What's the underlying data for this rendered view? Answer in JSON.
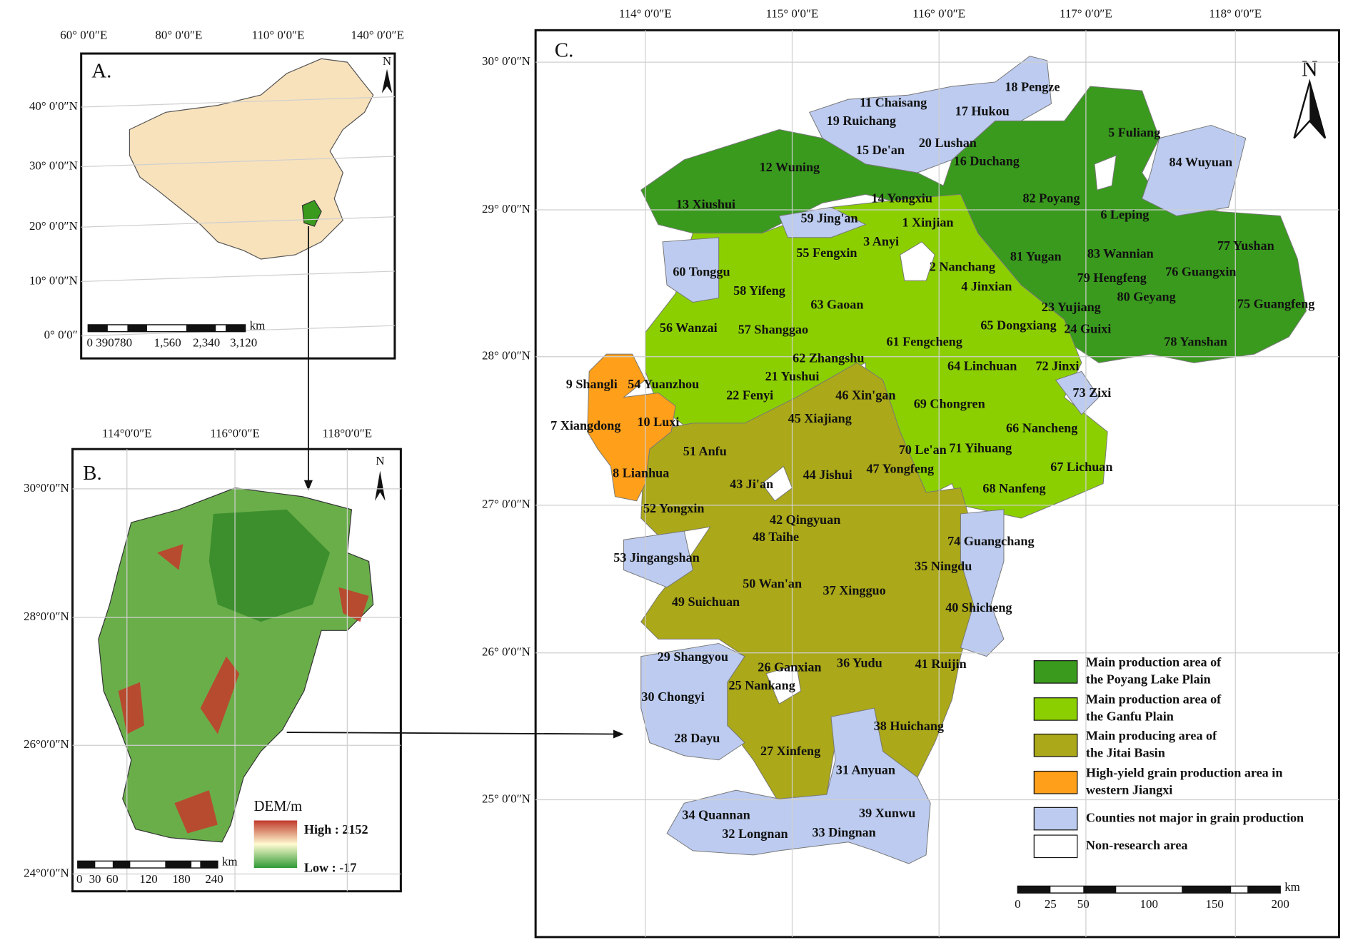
{
  "panel_a": {
    "label": "A.",
    "lon_labels": [
      "60° 0′0″E",
      "80° 0′0″E",
      "110° 0′0″E",
      "140° 0′0″E"
    ],
    "lat_labels": [
      "40° 0′0″N",
      "30° 0′0″N",
      "20° 0′0″N",
      "10° 0′0″N",
      "0° 0′0″"
    ],
    "north": "N",
    "scale_labels": [
      "0",
      "390780",
      "1,560",
      "2,340",
      "3,120"
    ],
    "scale_unit": "km"
  },
  "panel_b": {
    "label": "B.",
    "lon_labels": [
      "114°0′0″E",
      "116°0′0″E",
      "118°0′0″E"
    ],
    "lat_labels": [
      "30°0′0″N",
      "28°0′0″N",
      "26°0′0″N",
      "24°0′0″N"
    ],
    "north": "N",
    "legend_title": "DEM/m",
    "high": "High : 2152",
    "low": "Low : -17",
    "scale_labels": [
      "0",
      "30",
      "60",
      "120",
      "180",
      "240"
    ],
    "scale_unit": "km"
  },
  "panel_c": {
    "label": "C.",
    "lon_labels": [
      "114° 0′0″E",
      "115° 0′0″E",
      "116° 0′0″E",
      "117° 0′0″E",
      "118° 0′0″E"
    ],
    "lat_labels": [
      "30° 0′0″N",
      "29° 0′0″N",
      "28° 0′0″N",
      "27° 0′0″N",
      "26° 0′0″N",
      "25° 0′0″N"
    ],
    "north": "N",
    "counties": [
      "1 Xinjian",
      "2 Nanchang",
      "3 Anyi",
      "4 Jinxian",
      "5 Fuliang",
      "6 Leping",
      "7 Xiangdong",
      "8 Lianhua",
      "9 Shangli",
      "10 Luxi",
      "11 Chaisang",
      "12 Wuning",
      "13 Xiushui",
      "14 Yongxiu",
      "15 De'an",
      "16 Duchang",
      "17 Hukou",
      "18 Pengze",
      "19 Ruichang",
      "20 Lushan",
      "21 Yushui",
      "22 Fenyi",
      "23 Yujiang",
      "24 Guixi",
      "25 Nankang",
      "26 Ganxian",
      "27 Xinfeng",
      "28 Dayu",
      "29 Shangyou",
      "30 Chongyi",
      "31 Anyuan",
      "32 Longnan",
      "33 Dingnan",
      "34 Quannan",
      "35 Ningdu",
      "36 Yudu",
      "37 Xingguo",
      "38 Huichang",
      "39 Xunwu",
      "40 Shicheng",
      "41 Ruijin",
      "42 Qingyuan",
      "43 Ji'an",
      "44 Jishui",
      "45 Xiajiang",
      "46 Xin'gan",
      "47 Yongfeng",
      "48 Taihe",
      "49 Suichuan",
      "50 Wan'an",
      "51 Anfu",
      "52 Yongxin",
      "53 Jingangshan",
      "54 Yuanzhou",
      "55 Fengxin",
      "56 Wanzai",
      "57 Shanggao",
      "58 Yifeng",
      "59 Jing'an",
      "60 Tonggu",
      "61 Fengcheng",
      "62 Zhangshu",
      "63 Gaoan",
      "64 Linchuan",
      "65 Dongxiang",
      "66 Nancheng",
      "67 Lichuan",
      "68 Nanfeng",
      "69 Chongren",
      "70 Le'an",
      "71 Yihuang",
      "72 Jinxi",
      "73 Zixi",
      "74 Guangchang",
      "75 Guangfeng",
      "76 Guangxin",
      "77 Yushan",
      "78 Yanshan",
      "79 Hengfeng",
      "80 Geyang",
      "81 Yugan",
      "82 Poyang",
      "83 Wannian",
      "84 Wuyuan"
    ],
    "legend": [
      {
        "label": [
          "Main production area of",
          "the Poyang Lake Plain"
        ],
        "color": "#3a9a1e"
      },
      {
        "label": [
          "Main production area of",
          "the Ganfu Plain"
        ],
        "color": "#8ccf00"
      },
      {
        "label": [
          "Main producing area of",
          "the Jitai Basin"
        ],
        "color": "#aba819"
      },
      {
        "label": [
          "High-yield grain production area in",
          "western Jiangxi"
        ],
        "color": "#ff9f1a"
      },
      {
        "label": [
          "Counties not major in grain production"
        ],
        "color": "#bccbef"
      },
      {
        "label": [
          "Non-research area"
        ],
        "color": "#ffffff"
      }
    ],
    "scale_labels": [
      "0",
      "25",
      "50",
      "100",
      "150",
      "200"
    ],
    "scale_unit": "km"
  }
}
